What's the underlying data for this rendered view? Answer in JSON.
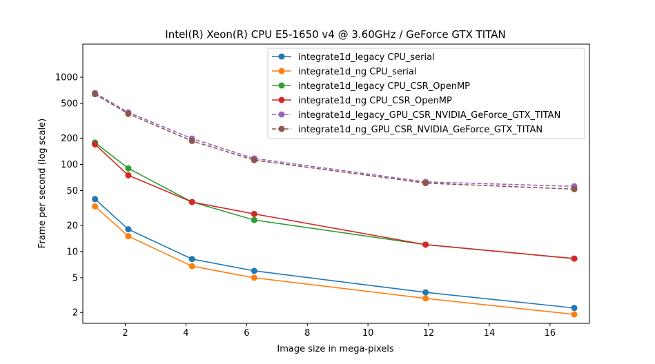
{
  "chart_data": {
    "type": "line",
    "title": "Intel(R) Xeon(R) CPU E5-1650 v4 @ 3.60GHz / GeForce GTX TITAN",
    "xlabel": "Image size in mega-pixels",
    "ylabel": "Frame per second (log scale)",
    "xlim": [
      0.6,
      17.3
    ],
    "ylim": [
      1.5,
      2400
    ],
    "yscale": "log",
    "grid": false,
    "legend_position": "top-right",
    "x_ticks": [
      2,
      4,
      6,
      8,
      10,
      12,
      14,
      16
    ],
    "x_tick_labels": [
      "2",
      "4",
      "6",
      "8",
      "10",
      "12",
      "14",
      "16"
    ],
    "y_ticks": [
      2,
      5,
      10,
      20,
      50,
      100,
      200,
      500,
      1000
    ],
    "y_tick_labels": [
      "2",
      "5",
      "10",
      "20",
      "50",
      "100",
      "200",
      "500",
      "1000"
    ],
    "x": [
      1.0,
      2.1,
      4.2,
      6.25,
      11.9,
      16.8
    ],
    "series": [
      {
        "name": "integrate1d_legacy CPU_serial",
        "color": "#1f77b4",
        "dashed": false,
        "values": [
          40,
          18,
          8.2,
          6.0,
          3.4,
          2.25
        ]
      },
      {
        "name": "integrate1d_ng CPU_serial",
        "color": "#ff7f0e",
        "dashed": false,
        "values": [
          33,
          15,
          6.8,
          5.0,
          2.9,
          1.9
        ]
      },
      {
        "name": "integrate1d_legacy CPU_CSR_OpenMP",
        "color": "#2ca02c",
        "dashed": false,
        "values": [
          178,
          90,
          37,
          23,
          12,
          8.3
        ]
      },
      {
        "name": "integrate1d_ng CPU_CSR_OpenMP",
        "color": "#d62728",
        "dashed": false,
        "values": [
          170,
          75,
          37,
          27,
          12,
          8.3
        ]
      },
      {
        "name": "integrate1d_legacy_GPU_CSR_NVIDIA_GeForce_GTX_TITAN",
        "color": "#9467bd",
        "dashed": true,
        "values": [
          660,
          395,
          198,
          117,
          63,
          56
        ]
      },
      {
        "name": "integrate1d_ng_GPU_CSR_NVIDIA_GeForce_GTX_TITAN",
        "color": "#8c564b",
        "dashed": true,
        "values": [
          640,
          380,
          186,
          112,
          61,
          52
        ]
      }
    ]
  }
}
